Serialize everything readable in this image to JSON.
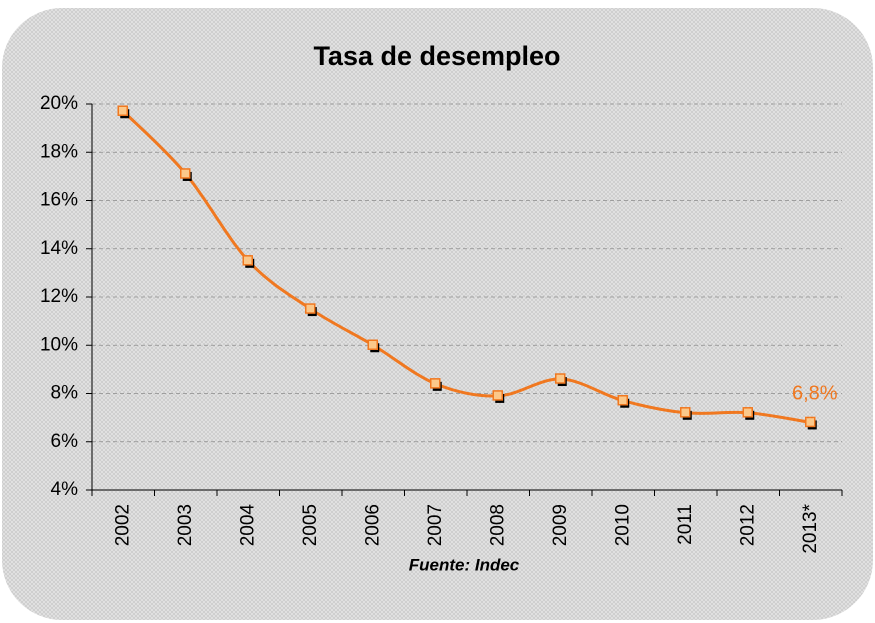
{
  "chart_data": {
    "type": "line",
    "title": "Tasa de desempleo",
    "categories": [
      "2002",
      "2003",
      "2004",
      "2005",
      "2006",
      "2007",
      "2008",
      "2009",
      "2010",
      "2011",
      "2012",
      "2013*"
    ],
    "values": [
      19.7,
      17.1,
      13.5,
      11.5,
      10.0,
      8.4,
      7.9,
      8.6,
      7.7,
      7.2,
      7.2,
      6.8
    ],
    "value_labels": [
      null,
      null,
      null,
      null,
      null,
      null,
      null,
      null,
      null,
      null,
      null,
      "6,8%"
    ],
    "color": "#f07820",
    "ylim": [
      4,
      20
    ],
    "yticks": [
      {
        "value": 4,
        "label": "4%"
      },
      {
        "value": 6,
        "label": "6%"
      },
      {
        "value": 8,
        "label": "8%"
      },
      {
        "value": 10,
        "label": "10%"
      },
      {
        "value": 12,
        "label": "12%"
      },
      {
        "value": 14,
        "label": "14%"
      },
      {
        "value": 16,
        "label": "16%"
      },
      {
        "value": 18,
        "label": "18%"
      },
      {
        "value": 20,
        "label": "20%"
      }
    ],
    "grid": true,
    "annotation": "Fuente: Indec"
  }
}
